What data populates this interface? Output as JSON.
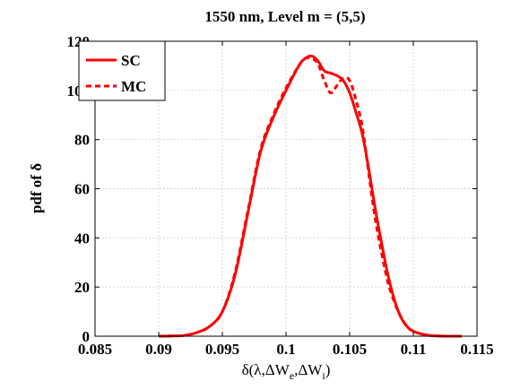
{
  "chart_data": {
    "type": "line",
    "title": "1550 nm, Level m = (5,5)",
    "xlabel_parts": {
      "delta": "δ(λ,ΔW",
      "sub_e": "e",
      "comma": ",ΔW",
      "sub_i": "i",
      "close": ")"
    },
    "ylabel": "pdf of δ",
    "xlim": [
      0.085,
      0.115
    ],
    "ylim": [
      0,
      120
    ],
    "xticks": [
      0.085,
      0.09,
      0.095,
      0.1,
      0.105,
      0.11,
      0.115
    ],
    "xtick_labels": [
      "0.085",
      "0.09",
      "0.095",
      "0.1",
      "0.105",
      "0.11",
      "0.115"
    ],
    "yticks": [
      0,
      20,
      40,
      60,
      80,
      100,
      120
    ],
    "ytick_labels": [
      "0",
      "20",
      "40",
      "60",
      "80",
      "100",
      "120"
    ],
    "grid": true,
    "legend_position": "top-left",
    "series": [
      {
        "name": "SC",
        "color": "#ff0000",
        "style": "solid",
        "x": [
          0.09,
          0.091,
          0.092,
          0.093,
          0.094,
          0.095,
          0.096,
          0.097,
          0.098,
          0.099,
          0.1,
          0.101,
          0.1015,
          0.102,
          0.1025,
          0.103,
          0.1035,
          0.104,
          0.1045,
          0.105,
          0.1055,
          0.106,
          0.1065,
          0.107,
          0.1075,
          0.108,
          0.1085,
          0.109,
          0.1095,
          0.11,
          0.111,
          0.112,
          0.113,
          0.1138
        ],
        "y": [
          0,
          0.1,
          0.3,
          1.5,
          4,
          10,
          25,
          50,
          75,
          89,
          100,
          110,
          113,
          114,
          112,
          108,
          107,
          106,
          104,
          99,
          91,
          82,
          68,
          52,
          38,
          25,
          15,
          8,
          4,
          2,
          0.5,
          0.1,
          0,
          0
        ]
      },
      {
        "name": "MC",
        "color": "#ff0000",
        "style": "dashed",
        "x": [
          0.09,
          0.091,
          0.092,
          0.093,
          0.094,
          0.095,
          0.096,
          0.097,
          0.098,
          0.099,
          0.1,
          0.101,
          0.1015,
          0.102,
          0.1025,
          0.103,
          0.1035,
          0.104,
          0.1045,
          0.105,
          0.1055,
          0.106,
          0.1065,
          0.107,
          0.1075,
          0.108,
          0.1085,
          0.109,
          0.1095,
          0.11,
          0.111,
          0.112,
          0.113,
          0.1138
        ],
        "y": [
          0,
          0.1,
          0.3,
          1.5,
          4,
          10,
          26,
          51,
          76,
          90,
          101,
          110,
          113,
          113,
          111,
          104,
          99,
          102,
          105,
          104,
          96,
          85,
          66,
          48,
          34,
          22,
          14,
          8,
          4,
          2,
          0.5,
          0.1,
          0,
          0
        ]
      }
    ]
  }
}
